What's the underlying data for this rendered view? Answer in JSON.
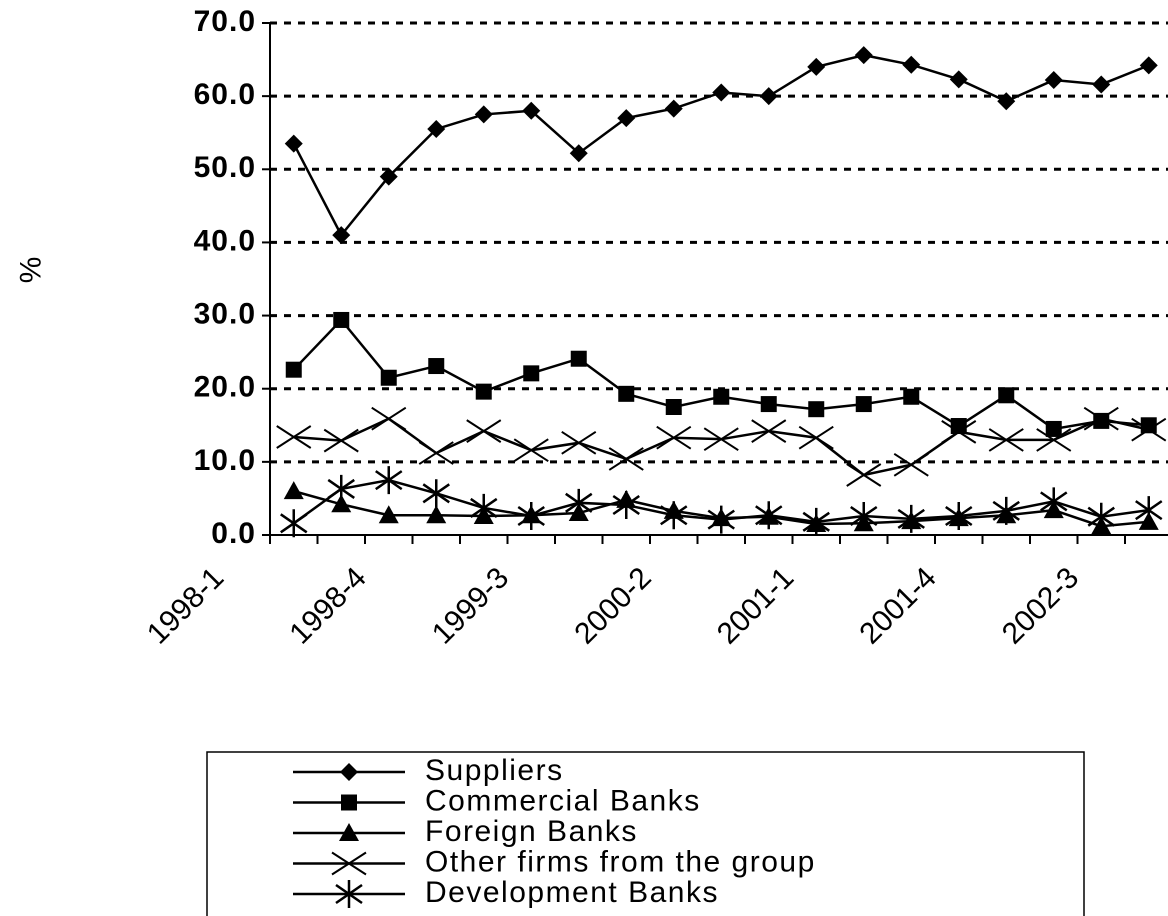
{
  "chart_data": {
    "type": "line",
    "y_label": "%",
    "categories": [
      "1998-1",
      null,
      null,
      "1998-4",
      null,
      null,
      "1999-3",
      null,
      null,
      "2000-2",
      null,
      null,
      "2001-1",
      null,
      null,
      "2001-4",
      null,
      null,
      "2002-3"
    ],
    "series": [
      {
        "name": "Suppliers",
        "color": "#000000",
        "marker": "diamond",
        "values": [
          53.5,
          41.0,
          49.0,
          55.5,
          57.5,
          58.0,
          52.2,
          57.0,
          58.3,
          60.5,
          60.0,
          64.0,
          65.6,
          64.3,
          62.3,
          59.3,
          62.2,
          61.6,
          64.2
        ]
      },
      {
        "name": "Commercial Banks",
        "color": "#000000",
        "marker": "square",
        "values": [
          22.6,
          29.4,
          21.5,
          23.1,
          19.6,
          22.1,
          24.1,
          19.3,
          17.5,
          18.9,
          17.9,
          17.2,
          17.9,
          18.9,
          14.9,
          19.1,
          14.5,
          15.6,
          15.0
        ]
      },
      {
        "name": "Foreign Banks",
        "color": "#000000",
        "marker": "triangle",
        "values": [
          6.0,
          4.2,
          2.7,
          2.7,
          2.6,
          2.7,
          3.0,
          4.8,
          3.3,
          2.3,
          2.5,
          1.5,
          1.6,
          1.9,
          2.3,
          2.7,
          3.4,
          1.2,
          1.8
        ]
      },
      {
        "name": "Other firms from the group",
        "color": "#000000",
        "marker": "x",
        "values": [
          13.4,
          12.9,
          15.9,
          11.2,
          14.2,
          11.6,
          12.6,
          10.4,
          13.3,
          13.1,
          14.2,
          13.3,
          8.2,
          9.6,
          14.1,
          13.0,
          13.0,
          15.9,
          14.4
        ]
      },
      {
        "name": "Development Banks",
        "color": "#000000",
        "marker": "star",
        "values": [
          1.6,
          6.3,
          7.5,
          5.7,
          3.7,
          2.6,
          4.4,
          4.1,
          2.7,
          2.1,
          2.7,
          1.8,
          2.6,
          2.2,
          2.6,
          3.3,
          4.6,
          2.5,
          3.4
        ]
      }
    ],
    "ylim": [
      0,
      70
    ],
    "yticks": [
      {
        "value": 0,
        "label": "0.0"
      },
      {
        "value": 10,
        "label": "10.0"
      },
      {
        "value": 20,
        "label": "20.0"
      },
      {
        "value": 30,
        "label": "30.0"
      },
      {
        "value": 40,
        "label": "40.0"
      },
      {
        "value": 50,
        "label": "50.0"
      },
      {
        "value": 60,
        "label": "60.0"
      },
      {
        "value": 70,
        "label": "70.0"
      }
    ],
    "grid": true,
    "legend": "bottom"
  }
}
